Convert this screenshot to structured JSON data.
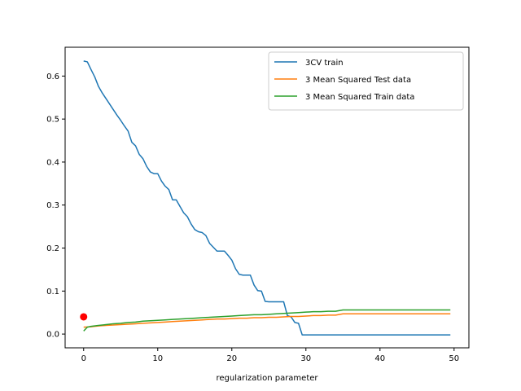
{
  "chart_data": {
    "type": "line",
    "title": "",
    "xlabel": "regularization parameter",
    "ylabel": "",
    "xlim": [
      -2.5,
      52
    ],
    "ylim": [
      -0.032,
      0.667
    ],
    "xticks": [
      0,
      10,
      20,
      30,
      40,
      50
    ],
    "yticks": [
      0.0,
      0.1,
      0.2,
      0.3,
      0.4,
      0.5,
      0.6
    ],
    "xtick_labels": [
      "0",
      "10",
      "20",
      "30",
      "40",
      "50"
    ],
    "ytick_labels": [
      "0.0",
      "0.1",
      "0.2",
      "0.3",
      "0.4",
      "0.5",
      "0.6"
    ],
    "grid": false,
    "legend_position": "top-right",
    "series": [
      {
        "name": "3CV train",
        "color": "#1f77b4",
        "points": [
          [
            0,
            0.635
          ],
          [
            0.5,
            0.633
          ],
          [
            1,
            0.615
          ],
          [
            1.5,
            0.598
          ],
          [
            2,
            0.576
          ],
          [
            2.5,
            0.561
          ],
          [
            3,
            0.548
          ],
          [
            3.5,
            0.535
          ],
          [
            4,
            0.522
          ],
          [
            4.5,
            0.509
          ],
          [
            5,
            0.497
          ],
          [
            5.5,
            0.484
          ],
          [
            6,
            0.472
          ],
          [
            6.5,
            0.446
          ],
          [
            7,
            0.438
          ],
          [
            7.5,
            0.418
          ],
          [
            8,
            0.408
          ],
          [
            8.5,
            0.39
          ],
          [
            9,
            0.377
          ],
          [
            9.5,
            0.373
          ],
          [
            10,
            0.373
          ],
          [
            10.5,
            0.356
          ],
          [
            11,
            0.344
          ],
          [
            11.5,
            0.336
          ],
          [
            12,
            0.312
          ],
          [
            12.5,
            0.312
          ],
          [
            13,
            0.297
          ],
          [
            13.5,
            0.282
          ],
          [
            14,
            0.273
          ],
          [
            14.5,
            0.256
          ],
          [
            15,
            0.243
          ],
          [
            15.5,
            0.238
          ],
          [
            16,
            0.236
          ],
          [
            16.5,
            0.229
          ],
          [
            17,
            0.211
          ],
          [
            17.5,
            0.202
          ],
          [
            18,
            0.193
          ],
          [
            18.5,
            0.193
          ],
          [
            19,
            0.193
          ],
          [
            19.5,
            0.183
          ],
          [
            20,
            0.172
          ],
          [
            20.5,
            0.152
          ],
          [
            21,
            0.139
          ],
          [
            21.5,
            0.137
          ],
          [
            22,
            0.137
          ],
          [
            22.5,
            0.137
          ],
          [
            23,
            0.114
          ],
          [
            23.5,
            0.101
          ],
          [
            24,
            0.1
          ],
          [
            24.5,
            0.076
          ],
          [
            25,
            0.075
          ],
          [
            25.5,
            0.075
          ],
          [
            26,
            0.075
          ],
          [
            26.5,
            0.075
          ],
          [
            27,
            0.075
          ],
          [
            27.5,
            0.043
          ],
          [
            28,
            0.04
          ],
          [
            28.5,
            0.027
          ],
          [
            29,
            0.025
          ],
          [
            29.5,
            -0.002
          ],
          [
            30,
            -0.002
          ],
          [
            35,
            -0.002
          ],
          [
            40,
            -0.002
          ],
          [
            45,
            -0.002
          ],
          [
            49.5,
            -0.002
          ]
        ]
      },
      {
        "name": "3 Mean Squared Test data",
        "color": "#ff7f0e",
        "points": [
          [
            0,
            0.016
          ],
          [
            1,
            0.017
          ],
          [
            2,
            0.019
          ],
          [
            3,
            0.02
          ],
          [
            4,
            0.021
          ],
          [
            5,
            0.022
          ],
          [
            6,
            0.023
          ],
          [
            7,
            0.024
          ],
          [
            8,
            0.025
          ],
          [
            9,
            0.026
          ],
          [
            10,
            0.027
          ],
          [
            11,
            0.028
          ],
          [
            12,
            0.029
          ],
          [
            13,
            0.03
          ],
          [
            14,
            0.031
          ],
          [
            15,
            0.032
          ],
          [
            16,
            0.033
          ],
          [
            17,
            0.034
          ],
          [
            18,
            0.035
          ],
          [
            19,
            0.035
          ],
          [
            20,
            0.036
          ],
          [
            21,
            0.037
          ],
          [
            22,
            0.037
          ],
          [
            23,
            0.038
          ],
          [
            24,
            0.038
          ],
          [
            25,
            0.039
          ],
          [
            26,
            0.039
          ],
          [
            27,
            0.04
          ],
          [
            28,
            0.041
          ],
          [
            29,
            0.041
          ],
          [
            30,
            0.042
          ],
          [
            31,
            0.043
          ],
          [
            32,
            0.043
          ],
          [
            33,
            0.044
          ],
          [
            34,
            0.044
          ],
          [
            35,
            0.047
          ],
          [
            36,
            0.047
          ],
          [
            38,
            0.047
          ],
          [
            40,
            0.047
          ],
          [
            42,
            0.047
          ],
          [
            44,
            0.047
          ],
          [
            46,
            0.047
          ],
          [
            48,
            0.047
          ],
          [
            49.5,
            0.047
          ]
        ]
      },
      {
        "name": "3 Mean Squared Train data",
        "color": "#2ca02c",
        "points": [
          [
            0,
            0.007
          ],
          [
            0.5,
            0.016
          ],
          [
            1,
            0.018
          ],
          [
            2,
            0.02
          ],
          [
            3,
            0.022
          ],
          [
            4,
            0.024
          ],
          [
            5,
            0.025
          ],
          [
            6,
            0.027
          ],
          [
            7,
            0.028
          ],
          [
            8,
            0.03
          ],
          [
            9,
            0.031
          ],
          [
            10,
            0.032
          ],
          [
            11,
            0.033
          ],
          [
            12,
            0.034
          ],
          [
            13,
            0.035
          ],
          [
            14,
            0.036
          ],
          [
            15,
            0.037
          ],
          [
            16,
            0.038
          ],
          [
            17,
            0.039
          ],
          [
            18,
            0.04
          ],
          [
            19,
            0.041
          ],
          [
            20,
            0.042
          ],
          [
            21,
            0.043
          ],
          [
            22,
            0.044
          ],
          [
            23,
            0.045
          ],
          [
            24,
            0.045
          ],
          [
            25,
            0.046
          ],
          [
            26,
            0.047
          ],
          [
            27,
            0.048
          ],
          [
            28,
            0.049
          ],
          [
            29,
            0.05
          ],
          [
            30,
            0.051
          ],
          [
            31,
            0.052
          ],
          [
            32,
            0.052
          ],
          [
            33,
            0.053
          ],
          [
            34,
            0.053
          ],
          [
            35,
            0.056
          ],
          [
            36,
            0.056
          ],
          [
            38,
            0.056
          ],
          [
            40,
            0.056
          ],
          [
            42,
            0.056
          ],
          [
            44,
            0.056
          ],
          [
            46,
            0.056
          ],
          [
            48,
            0.056
          ],
          [
            49.5,
            0.056
          ]
        ]
      }
    ],
    "markers": [
      {
        "x": 0,
        "y": 0.04,
        "color": "#ff0000"
      }
    ]
  }
}
